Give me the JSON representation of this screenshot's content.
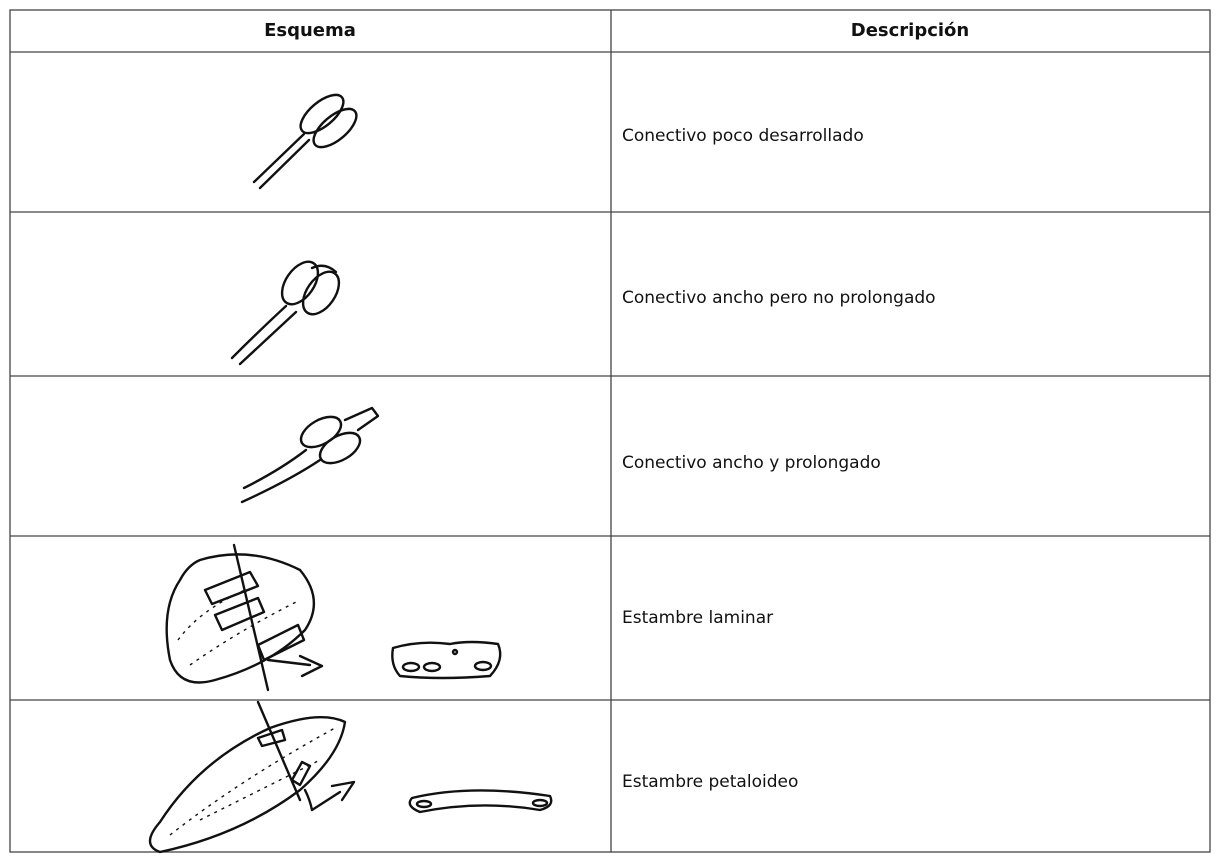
{
  "table": {
    "header": [
      "Esquema",
      "Descripción"
    ],
    "rows": [
      "Conectivo poco desarrollado",
      "Conectivo ancho pero no prolongado",
      "Conectivo ancho y prolongado",
      "Estambre laminar",
      "Estambre petaloideo"
    ]
  }
}
